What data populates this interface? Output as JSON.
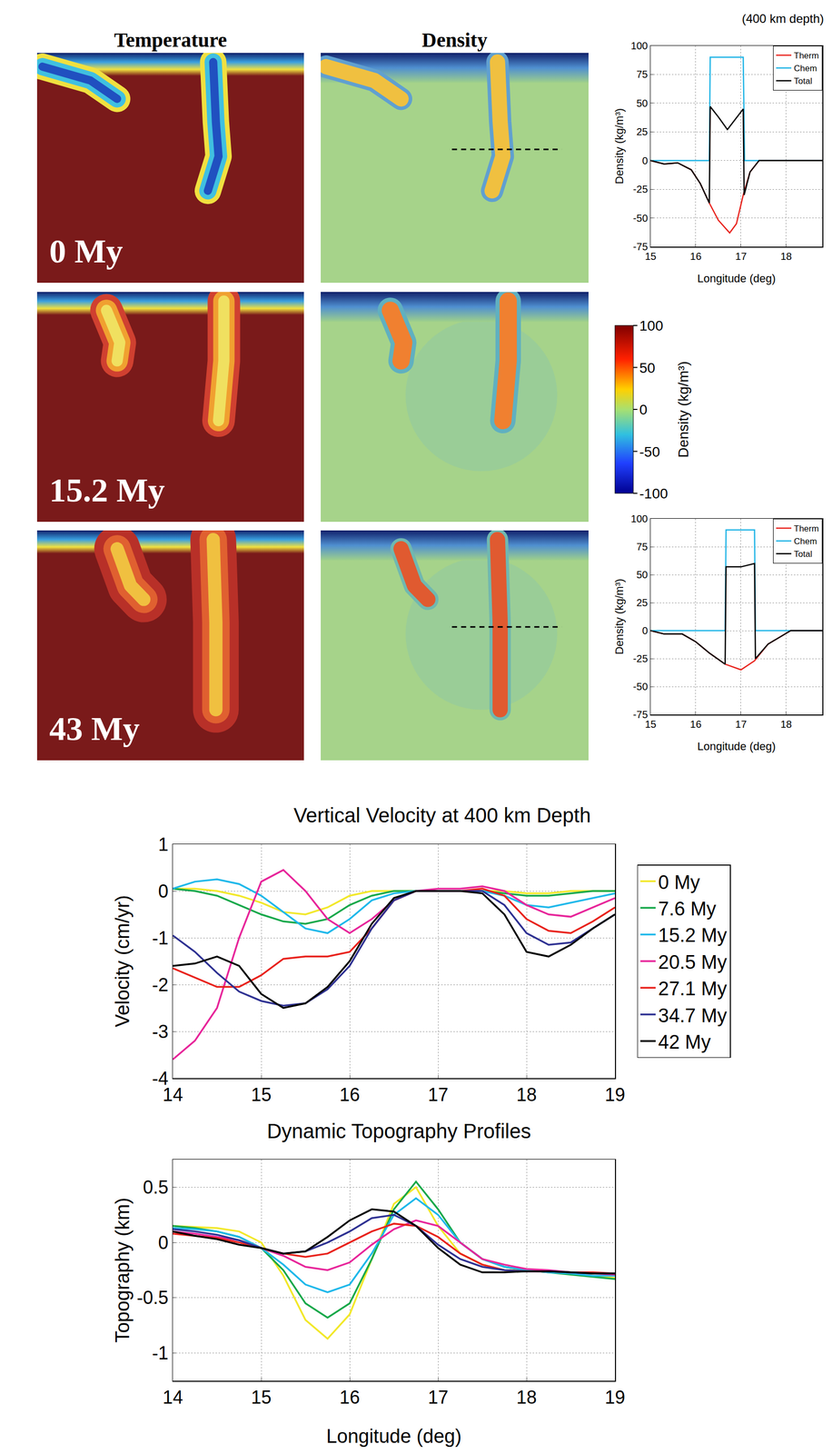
{
  "figure_panels": {
    "column_titles": [
      "Temperature",
      "Density"
    ],
    "time_labels": [
      "0 My",
      "15.2 My",
      "43 My"
    ],
    "colorbar": {
      "label": "Density (kg/m³)",
      "range": [
        -100,
        100
      ],
      "ticks": [
        100,
        50,
        0,
        -50,
        -100
      ]
    }
  },
  "chart_data": [
    {
      "type": "line",
      "title": "(400 km depth)",
      "x_label": "Longitude (deg)",
      "y_label": "Density (kg/m³)",
      "xlim": [
        15,
        18.8
      ],
      "xticks": [
        15,
        16,
        17,
        18
      ],
      "ylim": [
        -75,
        100
      ],
      "yticks": [
        -75,
        -50,
        -25,
        0,
        25,
        50,
        75,
        100
      ],
      "grid": true,
      "legend": "upper right",
      "series": [
        {
          "name": "Therm",
          "color": "#e8221c",
          "x": [
            15,
            15.3,
            15.6,
            15.9,
            16.1,
            16.3,
            16.5,
            16.75,
            16.9,
            17.05,
            17.2,
            17.4,
            17.8,
            18.8
          ],
          "values": [
            0,
            -3,
            -2,
            -8,
            -20,
            -37,
            -52,
            -63,
            -55,
            -30,
            -10,
            0,
            0,
            0
          ]
        },
        {
          "name": "Chem",
          "color": "#1fb4e6",
          "x": [
            15,
            16.3,
            16.32,
            17.05,
            17.08,
            18.8
          ],
          "values": [
            0,
            0,
            90,
            90,
            0,
            0
          ]
        },
        {
          "name": "Total",
          "color": "#000000",
          "x": [
            15,
            15.3,
            15.6,
            15.9,
            16.1,
            16.3,
            16.32,
            16.5,
            16.7,
            16.9,
            17.05,
            17.07,
            17.2,
            17.4,
            18.8
          ],
          "values": [
            0,
            -3,
            -2,
            -8,
            -20,
            -37,
            47,
            38,
            27,
            37,
            45,
            -30,
            -10,
            0,
            0
          ]
        }
      ]
    },
    {
      "type": "line",
      "x_label": "Longitude (deg)",
      "y_label": "Density (kg/m³)",
      "xlim": [
        15,
        18.8
      ],
      "xticks": [
        15,
        16,
        17,
        18
      ],
      "ylim": [
        -75,
        100
      ],
      "yticks": [
        -75,
        -50,
        -25,
        0,
        25,
        50,
        75,
        100
      ],
      "grid": true,
      "legend": "upper right",
      "series": [
        {
          "name": "Therm",
          "color": "#e8221c",
          "x": [
            15,
            15.3,
            15.7,
            16,
            16.3,
            16.65,
            17,
            17.3,
            17.6,
            18.1,
            18.8
          ],
          "values": [
            0,
            -3,
            -3,
            -10,
            -20,
            -30,
            -35,
            -27,
            -12,
            0,
            0
          ]
        },
        {
          "name": "Chem",
          "color": "#1fb4e6",
          "x": [
            15,
            16.65,
            16.67,
            17.3,
            17.32,
            18.8
          ],
          "values": [
            0,
            0,
            90,
            90,
            0,
            0
          ]
        },
        {
          "name": "Total",
          "color": "#000000",
          "x": [
            15,
            15.3,
            15.7,
            16,
            16.3,
            16.65,
            16.67,
            17,
            17.3,
            17.32,
            17.6,
            18.1,
            18.8
          ],
          "values": [
            0,
            -3,
            -3,
            -10,
            -20,
            -30,
            57,
            57,
            60,
            -25,
            -12,
            0,
            0
          ]
        }
      ]
    },
    {
      "type": "line",
      "title": "Vertical Velocity at 400 km Depth",
      "y_label": "Velocity (cm/yr)",
      "xlim": [
        14,
        19
      ],
      "xticks": [
        14,
        15,
        16,
        17,
        18,
        19
      ],
      "ylim": [
        -4,
        1
      ],
      "yticks": [
        -4,
        -3,
        -2,
        -1,
        0,
        1
      ],
      "grid": true,
      "legend": "right",
      "x": [
        14,
        14.25,
        14.5,
        14.75,
        15,
        15.25,
        15.5,
        15.75,
        16,
        16.25,
        16.5,
        16.75,
        17,
        17.25,
        17.5,
        17.75,
        18,
        18.25,
        18.5,
        18.75,
        19
      ],
      "series": [
        {
          "name": "0 My",
          "color": "#f2e82a",
          "values": [
            0.05,
            0.05,
            0,
            -0.1,
            -0.25,
            -0.45,
            -0.5,
            -0.35,
            -0.1,
            0,
            0,
            0,
            0,
            0,
            0,
            0,
            -0.05,
            -0.05,
            0,
            0,
            0
          ]
        },
        {
          "name": "7.6 My",
          "color": "#17a84a",
          "values": [
            0.05,
            0,
            -0.1,
            -0.3,
            -0.5,
            -0.65,
            -0.7,
            -0.6,
            -0.3,
            -0.1,
            0,
            0,
            0,
            0,
            0,
            -0.05,
            -0.1,
            -0.1,
            -0.05,
            0,
            0
          ]
        },
        {
          "name": "15.2 My",
          "color": "#1fb8ea",
          "values": [
            0.05,
            0.2,
            0.25,
            0.15,
            -0.1,
            -0.45,
            -0.8,
            -0.9,
            -0.6,
            -0.2,
            -0.05,
            0,
            0,
            0,
            0,
            -0.1,
            -0.3,
            -0.35,
            -0.25,
            -0.15,
            -0.05
          ]
        },
        {
          "name": "20.5 My",
          "color": "#e7259a",
          "values": [
            -3.6,
            -3.2,
            -2.5,
            -1,
            0.2,
            0.45,
            0,
            -0.6,
            -0.9,
            -0.6,
            -0.2,
            0,
            0.05,
            0.05,
            0.1,
            0,
            -0.3,
            -0.5,
            -0.55,
            -0.35,
            -0.15
          ]
        },
        {
          "name": "27.1 My",
          "color": "#e8221c",
          "values": [
            -1.65,
            -1.85,
            -2.05,
            -2.05,
            -1.8,
            -1.45,
            -1.4,
            -1.4,
            -1.3,
            -0.8,
            -0.2,
            0,
            0,
            0,
            0.05,
            -0.1,
            -0.6,
            -0.85,
            -0.9,
            -0.65,
            -0.35
          ]
        },
        {
          "name": "34.7 My",
          "color": "#2e3192",
          "values": [
            -0.95,
            -1.3,
            -1.75,
            -2.15,
            -2.35,
            -2.45,
            -2.4,
            -2.1,
            -1.6,
            -0.8,
            -0.2,
            0,
            0,
            0,
            0,
            -0.3,
            -0.9,
            -1.15,
            -1.1,
            -0.8,
            -0.5
          ]
        },
        {
          "name": "42 My",
          "color": "#000000",
          "values": [
            -1.6,
            -1.55,
            -1.4,
            -1.6,
            -2.2,
            -2.5,
            -2.4,
            -2.05,
            -1.5,
            -0.7,
            -0.15,
            0,
            0,
            0,
            -0.05,
            -0.5,
            -1.3,
            -1.4,
            -1.15,
            -0.8,
            -0.5
          ]
        }
      ]
    },
    {
      "type": "line",
      "title": "Dynamic Topography Profiles",
      "x_label": "Longitude (deg)",
      "y_label": "Topography (km)",
      "xlim": [
        14,
        19
      ],
      "xticks": [
        14,
        15,
        16,
        17,
        18,
        19
      ],
      "ylim": [
        -1.25,
        0.75
      ],
      "yticks": [
        -1,
        -0.5,
        0,
        0.5
      ],
      "grid": true,
      "x": [
        14,
        14.25,
        14.5,
        14.75,
        15,
        15.25,
        15.5,
        15.75,
        16,
        16.25,
        16.5,
        16.75,
        17,
        17.25,
        17.5,
        17.75,
        18,
        18.25,
        18.5,
        18.75,
        19
      ],
      "series": [
        {
          "name": "0 My",
          "color": "#f2e82a",
          "values": [
            0.15,
            0.14,
            0.13,
            0.1,
            0,
            -0.3,
            -0.7,
            -0.87,
            -0.65,
            -0.15,
            0.35,
            0.5,
            0.15,
            -0.1,
            -0.2,
            -0.25,
            -0.25,
            -0.27,
            -0.28,
            -0.3,
            -0.32
          ]
        },
        {
          "name": "7.6 My",
          "color": "#17a84a",
          "values": [
            0.15,
            0.13,
            0.1,
            0.05,
            -0.05,
            -0.25,
            -0.55,
            -0.68,
            -0.55,
            -0.15,
            0.3,
            0.55,
            0.3,
            0,
            -0.15,
            -0.22,
            -0.25,
            -0.27,
            -0.29,
            -0.31,
            -0.33
          ]
        },
        {
          "name": "15.2 My",
          "color": "#1fb8ea",
          "values": [
            0.13,
            0.12,
            0.1,
            0.05,
            -0.05,
            -0.2,
            -0.38,
            -0.45,
            -0.38,
            -0.1,
            0.25,
            0.4,
            0.25,
            0,
            -0.15,
            -0.22,
            -0.25,
            -0.27,
            -0.28,
            -0.3,
            -0.3
          ]
        },
        {
          "name": "20.5 My",
          "color": "#e7259a",
          "values": [
            0.1,
            0.08,
            0.05,
            0.02,
            -0.05,
            -0.12,
            -0.22,
            -0.25,
            -0.18,
            -0.02,
            0.12,
            0.2,
            0.15,
            0,
            -0.15,
            -0.2,
            -0.24,
            -0.25,
            -0.27,
            -0.28,
            -0.29
          ]
        },
        {
          "name": "27.1 My",
          "color": "#e8221c",
          "values": [
            0.08,
            0.06,
            0.04,
            0,
            -0.05,
            -0.1,
            -0.13,
            -0.1,
            0,
            0.1,
            0.17,
            0.15,
            0.05,
            -0.1,
            -0.2,
            -0.25,
            -0.26,
            -0.26,
            -0.27,
            -0.27,
            -0.28
          ]
        },
        {
          "name": "34.7 My",
          "color": "#2e3192",
          "values": [
            0.12,
            0.1,
            0.07,
            0.02,
            -0.05,
            -0.1,
            -0.08,
            0,
            0.1,
            0.22,
            0.25,
            0.15,
            -0.02,
            -0.15,
            -0.22,
            -0.25,
            -0.26,
            -0.26,
            -0.27,
            -0.28,
            -0.28
          ]
        },
        {
          "name": "42 My",
          "color": "#000000",
          "values": [
            0.1,
            0.06,
            0.03,
            -0.02,
            -0.05,
            -0.1,
            -0.08,
            0.05,
            0.2,
            0.3,
            0.28,
            0.15,
            -0.05,
            -0.2,
            -0.27,
            -0.27,
            -0.26,
            -0.26,
            -0.27,
            -0.28,
            -0.28
          ]
        }
      ]
    }
  ]
}
